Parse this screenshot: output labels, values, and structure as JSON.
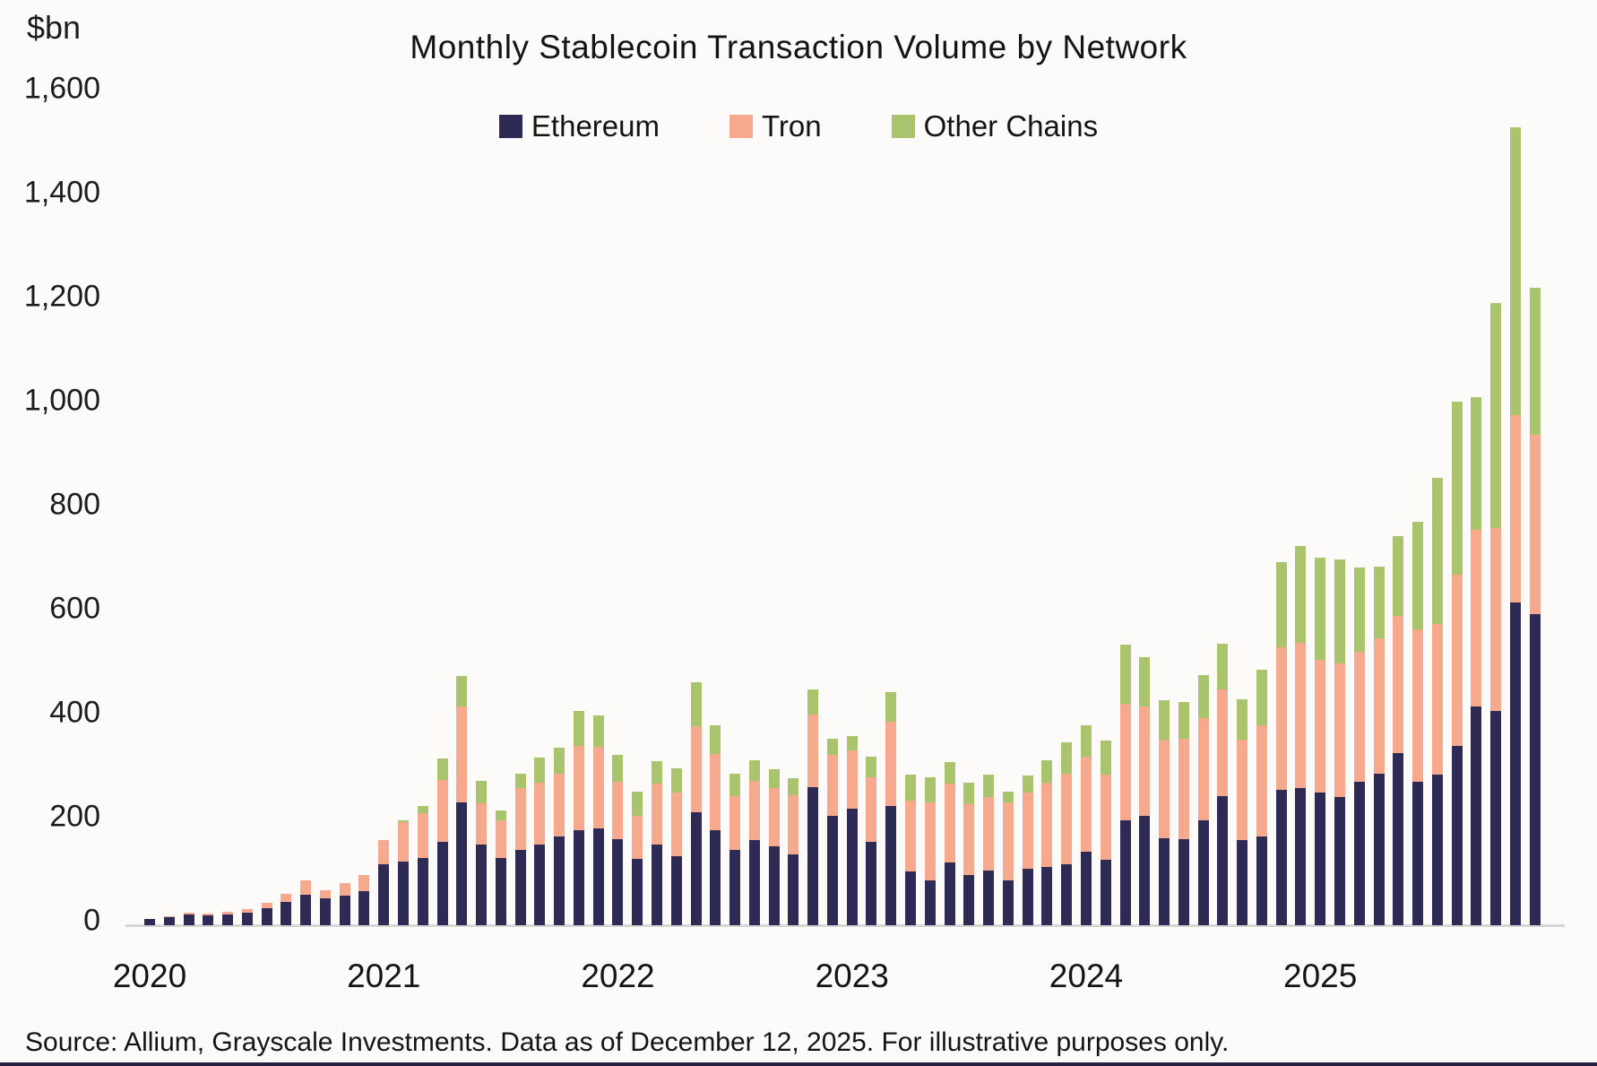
{
  "header": {
    "unit_label": "$bn",
    "title": "Monthly Stablecoin Transaction Volume by Network"
  },
  "footer": {
    "source": "Source: Allium, Grayscale Investments. Data as of December 12, 2025. For illustrative purposes only."
  },
  "chart_data": {
    "type": "bar",
    "stacked": true,
    "title": "Monthly Stablecoin Transaction Volume by Network",
    "ylabel": "$bn",
    "xlabel": "",
    "ylim": [
      0,
      1600
    ],
    "ytick_step": 200,
    "yticks": [
      0,
      200,
      400,
      600,
      800,
      1000,
      1200,
      1400,
      1600
    ],
    "yticks_formatted": [
      "0",
      "200",
      "400",
      "600",
      "800",
      "1,000",
      "1,200",
      "1,400",
      "1,600"
    ],
    "grid": false,
    "legend_position": "top",
    "year_labels": [
      "2020",
      "2021",
      "2022",
      "2023",
      "2024",
      "2025"
    ],
    "categories": [
      "Jan 2020",
      "Feb 2020",
      "Mar 2020",
      "Apr 2020",
      "May 2020",
      "Jun 2020",
      "Jul 2020",
      "Aug 2020",
      "Sep 2020",
      "Oct 2020",
      "Nov 2020",
      "Dec 2020",
      "Jan 2021",
      "Feb 2021",
      "Mar 2021",
      "Apr 2021",
      "May 2021",
      "Jun 2021",
      "Jul 2021",
      "Aug 2021",
      "Sep 2021",
      "Oct 2021",
      "Nov 2021",
      "Dec 2021",
      "Jan 2022",
      "Feb 2022",
      "Mar 2022",
      "Apr 2022",
      "May 2022",
      "Jun 2022",
      "Jul 2022",
      "Aug 2022",
      "Sep 2022",
      "Oct 2022",
      "Nov 2022",
      "Dec 2022",
      "Jan 2023",
      "Feb 2023",
      "Mar 2023",
      "Apr 2023",
      "May 2023",
      "Jun 2023",
      "Jul 2023",
      "Aug 2023",
      "Sep 2023",
      "Oct 2023",
      "Nov 2023",
      "Dec 2023",
      "Jan 2024",
      "Feb 2024",
      "Mar 2024",
      "Apr 2024",
      "May 2024",
      "Jun 2024",
      "Jul 2024",
      "Aug 2024",
      "Sep 2024",
      "Oct 2024",
      "Nov 2024",
      "Dec 2024",
      "Jan 2025",
      "Feb 2025",
      "Mar 2025",
      "Apr 2025",
      "May 2025",
      "Jun 2025",
      "Jul 2025",
      "Aug 2025",
      "Sep 2025",
      "Oct 2025",
      "Nov 2025",
      "Dec 2025"
    ],
    "series": [
      {
        "name": "Ethereum",
        "color": "#2E2A56",
        "values": [
          12,
          15,
          21,
          19,
          20,
          24,
          33,
          45,
          58,
          52,
          57,
          66,
          118,
          123,
          129,
          161,
          236,
          155,
          129,
          145,
          155,
          170,
          182,
          187,
          166,
          127,
          155,
          132,
          217,
          183,
          144,
          164,
          152,
          137,
          266,
          210,
          225,
          160,
          229,
          104,
          87,
          121,
          96,
          106,
          87,
          109,
          112,
          118,
          142,
          126,
          201,
          210,
          167,
          166,
          201,
          248,
          164,
          171,
          261,
          264,
          255,
          247,
          276,
          291,
          331,
          276,
          290,
          345,
          421,
          412,
          620,
          598
        ]
      },
      {
        "name": "Tron",
        "color": "#F7A98E",
        "values": [
          0,
          2,
          3,
          3,
          6,
          7,
          10,
          15,
          28,
          16,
          24,
          30,
          46,
          75,
          86,
          118,
          184,
          80,
          72,
          118,
          120,
          122,
          163,
          156,
          110,
          84,
          118,
          124,
          165,
          146,
          105,
          114,
          111,
          113,
          140,
          118,
          111,
          125,
          162,
          136,
          149,
          152,
          137,
          141,
          149,
          147,
          162,
          174,
          183,
          164,
          225,
          210,
          190,
          192,
          197,
          206,
          193,
          214,
          274,
          279,
          255,
          256,
          250,
          260,
          264,
          293,
          290,
          330,
          339,
          352,
          361,
          345
        ]
      },
      {
        "name": "Other Chains",
        "color": "#A9C46C",
        "values": [
          0,
          0,
          0,
          0,
          0,
          0,
          0,
          0,
          0,
          0,
          0,
          0,
          0,
          3,
          14,
          42,
          60,
          42,
          19,
          28,
          47,
          49,
          67,
          60,
          51,
          46,
          43,
          46,
          86,
          55,
          42,
          40,
          37,
          33,
          48,
          30,
          28,
          39,
          57,
          49,
          48,
          40,
          41,
          43,
          21,
          32,
          43,
          59,
          59,
          66,
          114,
          95,
          76,
          72,
          83,
          87,
          78,
          106,
          163,
          187,
          197,
          201,
          162,
          139,
          153,
          207,
          280,
          332,
          255,
          432,
          553,
          283
        ]
      }
    ]
  }
}
